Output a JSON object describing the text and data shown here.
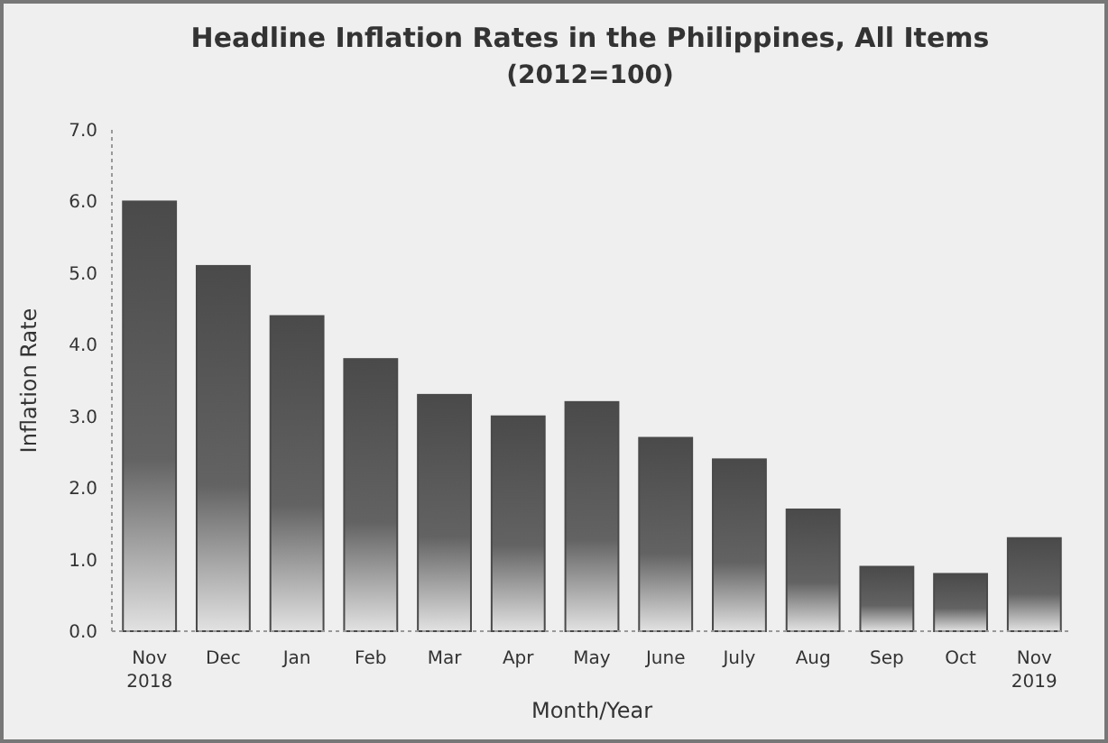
{
  "chart_data": {
    "type": "bar",
    "title": "Headline Inflation Rates in the Philippines, All Items",
    "subtitle": "(2012=100)",
    "xlabel": "Month/Year",
    "ylabel": "Inflation Rate",
    "categories": [
      "Nov\n2018",
      "Dec",
      "Jan",
      "Feb",
      "Mar",
      "Apr",
      "May",
      "June",
      "July",
      "Aug",
      "Sep",
      "Oct",
      "Nov\n2019"
    ],
    "values": [
      6.0,
      5.1,
      4.4,
      3.8,
      3.3,
      3.0,
      3.2,
      2.7,
      2.4,
      1.7,
      0.9,
      0.8,
      1.3
    ],
    "color": "#4a4a4a",
    "ylim": [
      0,
      7
    ],
    "yticks": [
      {
        "value": 0,
        "label": "0.0"
      },
      {
        "value": 1,
        "label": "1.0"
      },
      {
        "value": 2,
        "label": "2.0"
      },
      {
        "value": 3,
        "label": "3.0"
      },
      {
        "value": 4,
        "label": "4.0"
      },
      {
        "value": 5,
        "label": "5.0"
      },
      {
        "value": 6,
        "label": "6.0"
      },
      {
        "value": 7,
        "label": "7.0"
      }
    ],
    "grid": false
  }
}
